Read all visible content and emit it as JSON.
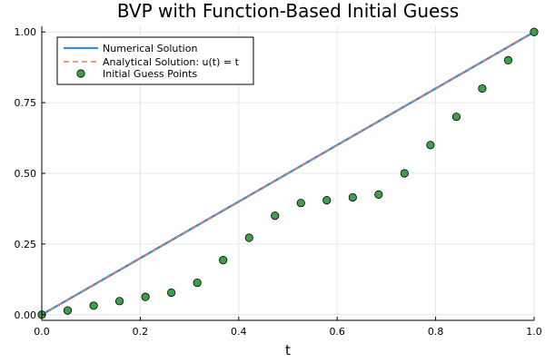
{
  "chart_data": {
    "type": "line",
    "title": "BVP with Function-Based Initial Guess",
    "xlabel": "t",
    "ylabel": "",
    "xlim": [
      0,
      1
    ],
    "ylim": [
      -0.02,
      1.02
    ],
    "x_ticks": [
      0.0,
      0.2,
      0.4,
      0.6,
      0.8,
      1.0
    ],
    "x_tick_labels": [
      "0.0",
      "0.2",
      "0.4",
      "0.6",
      "0.8",
      "1.0"
    ],
    "y_ticks": [
      0.0,
      0.25,
      0.5,
      0.75,
      1.0
    ],
    "y_tick_labels": [
      "0.00",
      "0.25",
      "0.50",
      "0.75",
      "1.00"
    ],
    "grid": true,
    "legend_position": "top-left",
    "series": [
      {
        "name": "Numerical Solution",
        "kind": "line",
        "color": "#3a8fd0",
        "x": [
          0,
          1
        ],
        "y": [
          0,
          1
        ]
      },
      {
        "name": "Analytical Solution: u(t) = t",
        "kind": "dashed-line",
        "color": "#e07b5f",
        "x": [
          0,
          1
        ],
        "y": [
          0,
          1
        ]
      },
      {
        "name": "Initial Guess Points",
        "kind": "scatter",
        "color": "#3ba04a",
        "x": [
          0.0,
          0.0526,
          0.1053,
          0.1579,
          0.2105,
          0.2632,
          0.3158,
          0.3684,
          0.4211,
          0.4737,
          0.5263,
          0.5789,
          0.6316,
          0.6842,
          0.7368,
          0.7895,
          0.8421,
          0.8947,
          0.9474,
          1.0
        ],
        "y": [
          0.0,
          0.015,
          0.032,
          0.048,
          0.063,
          0.078,
          0.113,
          0.193,
          0.272,
          0.35,
          0.395,
          0.405,
          0.415,
          0.425,
          0.5,
          0.6,
          0.7,
          0.8,
          0.9,
          1.0
        ]
      }
    ]
  }
}
